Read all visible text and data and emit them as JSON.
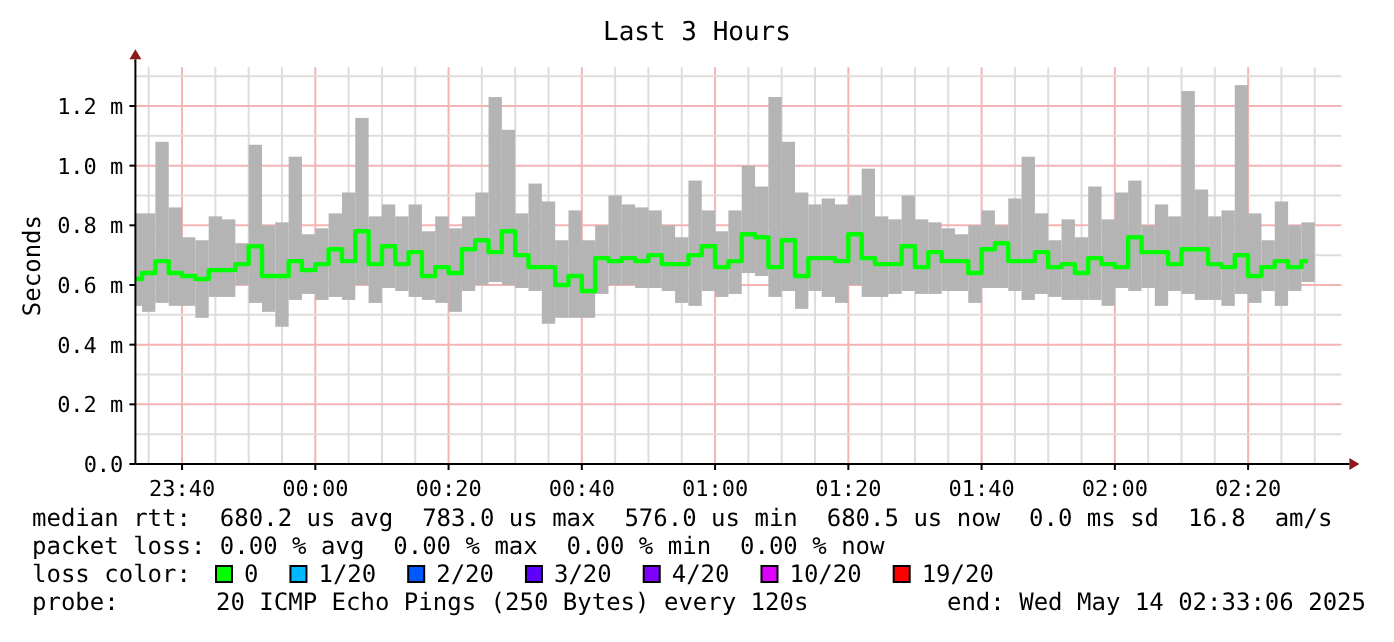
{
  "chart_data": {
    "type": "bar",
    "title": "Last 3 Hours",
    "ylabel": "Seconds",
    "xlim": [
      "2025-05-13T23:33",
      "2025-05-14T02:34"
    ],
    "xticks": [
      {
        "value": "2025-05-13T23:35",
        "label": null
      },
      {
        "value": "2025-05-13T23:40",
        "label": "23:40"
      },
      {
        "value": "2025-05-13T23:45",
        "label": null
      },
      {
        "value": "2025-05-13T23:50",
        "label": null
      },
      {
        "value": "2025-05-13T23:55",
        "label": null
      },
      {
        "value": "2025-05-14T00:00",
        "label": "00:00"
      },
      {
        "value": "2025-05-14T00:05",
        "label": null
      },
      {
        "value": "2025-05-14T00:10",
        "label": null
      },
      {
        "value": "2025-05-14T00:15",
        "label": null
      },
      {
        "value": "2025-05-14T00:20",
        "label": "00:20"
      },
      {
        "value": "2025-05-14T00:25",
        "label": null
      },
      {
        "value": "2025-05-14T00:30",
        "label": null
      },
      {
        "value": "2025-05-14T00:35",
        "label": null
      },
      {
        "value": "2025-05-14T00:40",
        "label": "00:40"
      },
      {
        "value": "2025-05-14T00:45",
        "label": null
      },
      {
        "value": "2025-05-14T00:50",
        "label": null
      },
      {
        "value": "2025-05-14T00:55",
        "label": null
      },
      {
        "value": "2025-05-14T01:00",
        "label": "01:00"
      },
      {
        "value": "2025-05-14T01:05",
        "label": null
      },
      {
        "value": "2025-05-14T01:10",
        "label": null
      },
      {
        "value": "2025-05-14T01:15",
        "label": null
      },
      {
        "value": "2025-05-14T01:20",
        "label": "01:20"
      },
      {
        "value": "2025-05-14T01:25",
        "label": null
      },
      {
        "value": "2025-05-14T01:30",
        "label": null
      },
      {
        "value": "2025-05-14T01:35",
        "label": null
      },
      {
        "value": "2025-05-14T01:40",
        "label": "01:40"
      },
      {
        "value": "2025-05-14T01:45",
        "label": null
      },
      {
        "value": "2025-05-14T01:50",
        "label": null
      },
      {
        "value": "2025-05-14T01:55",
        "label": null
      },
      {
        "value": "2025-05-14T02:00",
        "label": "02:00"
      },
      {
        "value": "2025-05-14T02:05",
        "label": null
      },
      {
        "value": "2025-05-14T02:10",
        "label": null
      },
      {
        "value": "2025-05-14T02:15",
        "label": null
      },
      {
        "value": "2025-05-14T02:20",
        "label": "02:20"
      },
      {
        "value": "2025-05-14T02:25",
        "label": null
      },
      {
        "value": "2025-05-14T02:30",
        "label": null
      }
    ],
    "ylim": [
      0,
      1.33
    ],
    "yticks": [
      {
        "value": 0,
        "label": "0.0"
      },
      {
        "value": 0.1,
        "label": null
      },
      {
        "value": 0.2,
        "label": "0.2 m"
      },
      {
        "value": 0.3,
        "label": null
      },
      {
        "value": 0.4,
        "label": "0.4 m"
      },
      {
        "value": 0.5,
        "label": null
      },
      {
        "value": 0.6,
        "label": "0.6 m"
      },
      {
        "value": 0.7,
        "label": null
      },
      {
        "value": 0.8,
        "label": "0.8 m"
      },
      {
        "value": 0.9,
        "label": null
      },
      {
        "value": 1.0,
        "label": "1.0 m"
      },
      {
        "value": 1.1,
        "label": null
      },
      {
        "value": 1.2,
        "label": "1.2 m"
      },
      {
        "value": 1.3,
        "label": null
      }
    ],
    "grid": true,
    "series": [
      {
        "color": "#b4b4b4",
        "x": [
          "2025-05-13T23:33",
          "2025-05-13T23:35",
          "2025-05-13T23:37",
          "2025-05-13T23:39",
          "2025-05-13T23:41",
          "2025-05-13T23:43",
          "2025-05-13T23:45",
          "2025-05-13T23:47",
          "2025-05-13T23:49",
          "2025-05-13T23:51",
          "2025-05-13T23:53",
          "2025-05-13T23:55",
          "2025-05-13T23:57",
          "2025-05-13T23:59",
          "2025-05-14T00:01",
          "2025-05-14T00:03",
          "2025-05-14T00:05",
          "2025-05-14T00:07",
          "2025-05-14T00:09",
          "2025-05-14T00:11",
          "2025-05-14T00:13",
          "2025-05-14T00:15",
          "2025-05-14T00:17",
          "2025-05-14T00:19",
          "2025-05-14T00:21",
          "2025-05-14T00:23",
          "2025-05-14T00:25",
          "2025-05-14T00:27",
          "2025-05-14T00:29",
          "2025-05-14T00:31",
          "2025-05-14T00:33",
          "2025-05-14T00:35",
          "2025-05-14T00:37",
          "2025-05-14T00:39",
          "2025-05-14T00:41",
          "2025-05-14T00:43",
          "2025-05-14T00:45",
          "2025-05-14T00:47",
          "2025-05-14T00:49",
          "2025-05-14T00:51",
          "2025-05-14T00:53",
          "2025-05-14T00:55",
          "2025-05-14T00:57",
          "2025-05-14T00:59",
          "2025-05-14T01:01",
          "2025-05-14T01:03",
          "2025-05-14T01:05",
          "2025-05-14T01:07",
          "2025-05-14T01:09",
          "2025-05-14T01:11",
          "2025-05-14T01:13",
          "2025-05-14T01:15",
          "2025-05-14T01:17",
          "2025-05-14T01:19",
          "2025-05-14T01:21",
          "2025-05-14T01:23",
          "2025-05-14T01:25",
          "2025-05-14T01:27",
          "2025-05-14T01:29",
          "2025-05-14T01:31",
          "2025-05-14T01:33",
          "2025-05-14T01:35",
          "2025-05-14T01:37",
          "2025-05-14T01:39",
          "2025-05-14T01:41",
          "2025-05-14T01:43",
          "2025-05-14T01:45",
          "2025-05-14T01:47",
          "2025-05-14T01:49",
          "2025-05-14T01:51",
          "2025-05-14T01:53",
          "2025-05-14T01:55",
          "2025-05-14T01:57",
          "2025-05-14T01:59",
          "2025-05-14T02:01",
          "2025-05-14T02:03",
          "2025-05-14T02:05",
          "2025-05-14T02:07",
          "2025-05-14T02:09",
          "2025-05-14T02:11",
          "2025-05-14T02:13",
          "2025-05-14T02:15",
          "2025-05-14T02:17",
          "2025-05-14T02:19",
          "2025-05-14T02:21",
          "2025-05-14T02:23",
          "2025-05-14T02:25",
          "2025-05-14T02:27",
          "2025-05-14T02:29"
        ],
        "base": [
          0.53,
          0.51,
          0.54,
          0.53,
          0.53,
          0.49,
          0.56,
          0.56,
          0.6,
          0.54,
          0.51,
          0.46,
          0.55,
          0.57,
          0.55,
          0.56,
          0.55,
          0.6,
          0.54,
          0.59,
          0.58,
          0.56,
          0.55,
          0.54,
          0.51,
          0.58,
          0.6,
          0.61,
          0.6,
          0.59,
          0.58,
          0.47,
          0.49,
          0.49,
          0.49,
          0.57,
          0.6,
          0.6,
          0.59,
          0.59,
          0.58,
          0.54,
          0.53,
          0.58,
          0.56,
          0.57,
          0.64,
          0.63,
          0.56,
          0.58,
          0.52,
          0.58,
          0.56,
          0.54,
          0.6,
          0.56,
          0.56,
          0.57,
          0.58,
          0.57,
          0.57,
          0.58,
          0.58,
          0.54,
          0.59,
          0.59,
          0.58,
          0.55,
          0.57,
          0.56,
          0.55,
          0.55,
          0.55,
          0.53,
          0.59,
          0.58,
          0.59,
          0.53,
          0.58,
          0.57,
          0.55,
          0.55,
          0.53,
          0.57,
          0.54,
          0.58,
          0.53,
          0.58,
          0.61
        ],
        "values": [
          0.31,
          0.33,
          0.54,
          0.33,
          0.23,
          0.26,
          0.27,
          0.26,
          0.14,
          0.53,
          0.29,
          0.35,
          0.48,
          0.2,
          0.24,
          0.28,
          0.36,
          0.56,
          0.29,
          0.28,
          0.25,
          0.31,
          0.23,
          0.29,
          0.28,
          0.25,
          0.31,
          0.62,
          0.52,
          0.25,
          0.36,
          0.41,
          0.26,
          0.36,
          0.26,
          0.23,
          0.3,
          0.27,
          0.27,
          0.26,
          0.22,
          0.22,
          0.42,
          0.27,
          0.22,
          0.28,
          0.36,
          0.3,
          0.67,
          0.5,
          0.39,
          0.29,
          0.33,
          0.33,
          0.3,
          0.43,
          0.27,
          0.25,
          0.32,
          0.25,
          0.24,
          0.21,
          0.19,
          0.26,
          0.26,
          0.21,
          0.31,
          0.48,
          0.27,
          0.19,
          0.27,
          0.21,
          0.38,
          0.29,
          0.32,
          0.37,
          0.21,
          0.34,
          0.25,
          0.68,
          0.37,
          0.28,
          0.32,
          0.7,
          0.3,
          0.17,
          0.35,
          0.22,
          0.2
        ]
      },
      {
        "type": "step",
        "color": "#00ff00",
        "x": [
          "2025-05-13T23:33",
          "2025-05-13T23:35",
          "2025-05-13T23:37",
          "2025-05-13T23:39",
          "2025-05-13T23:41",
          "2025-05-13T23:43",
          "2025-05-13T23:45",
          "2025-05-13T23:47",
          "2025-05-13T23:49",
          "2025-05-13T23:51",
          "2025-05-13T23:53",
          "2025-05-13T23:55",
          "2025-05-13T23:57",
          "2025-05-13T23:59",
          "2025-05-14T00:01",
          "2025-05-14T00:03",
          "2025-05-14T00:05",
          "2025-05-14T00:07",
          "2025-05-14T00:09",
          "2025-05-14T00:11",
          "2025-05-14T00:13",
          "2025-05-14T00:15",
          "2025-05-14T00:17",
          "2025-05-14T00:19",
          "2025-05-14T00:21",
          "2025-05-14T00:23",
          "2025-05-14T00:25",
          "2025-05-14T00:27",
          "2025-05-14T00:29",
          "2025-05-14T00:31",
          "2025-05-14T00:33",
          "2025-05-14T00:35",
          "2025-05-14T00:37",
          "2025-05-14T00:39",
          "2025-05-14T00:41",
          "2025-05-14T00:43",
          "2025-05-14T00:45",
          "2025-05-14T00:47",
          "2025-05-14T00:49",
          "2025-05-14T00:51",
          "2025-05-14T00:53",
          "2025-05-14T00:55",
          "2025-05-14T00:57",
          "2025-05-14T00:59",
          "2025-05-14T01:01",
          "2025-05-14T01:03",
          "2025-05-14T01:05",
          "2025-05-14T01:07",
          "2025-05-14T01:09",
          "2025-05-14T01:11",
          "2025-05-14T01:13",
          "2025-05-14T01:15",
          "2025-05-14T01:17",
          "2025-05-14T01:19",
          "2025-05-14T01:21",
          "2025-05-14T01:23",
          "2025-05-14T01:25",
          "2025-05-14T01:27",
          "2025-05-14T01:29",
          "2025-05-14T01:31",
          "2025-05-14T01:33",
          "2025-05-14T01:35",
          "2025-05-14T01:37",
          "2025-05-14T01:39",
          "2025-05-14T01:41",
          "2025-05-14T01:43",
          "2025-05-14T01:45",
          "2025-05-14T01:47",
          "2025-05-14T01:49",
          "2025-05-14T01:51",
          "2025-05-14T01:53",
          "2025-05-14T01:55",
          "2025-05-14T01:57",
          "2025-05-14T01:59",
          "2025-05-14T02:01",
          "2025-05-14T02:03",
          "2025-05-14T02:05",
          "2025-05-14T02:07",
          "2025-05-14T02:09",
          "2025-05-14T02:11",
          "2025-05-14T02:13",
          "2025-05-14T02:15",
          "2025-05-14T02:17",
          "2025-05-14T02:19",
          "2025-05-14T02:21",
          "2025-05-14T02:23",
          "2025-05-14T02:25",
          "2025-05-14T02:27",
          "2025-05-14T02:29"
        ],
        "values": [
          0.62,
          0.64,
          0.68,
          0.64,
          0.63,
          0.62,
          0.65,
          0.65,
          0.67,
          0.73,
          0.63,
          0.63,
          0.68,
          0.65,
          0.67,
          0.72,
          0.68,
          0.78,
          0.67,
          0.73,
          0.67,
          0.71,
          0.63,
          0.66,
          0.64,
          0.72,
          0.75,
          0.71,
          0.78,
          0.7,
          0.66,
          0.66,
          0.6,
          0.63,
          0.58,
          0.69,
          0.68,
          0.69,
          0.68,
          0.7,
          0.67,
          0.67,
          0.7,
          0.73,
          0.66,
          0.68,
          0.77,
          0.76,
          0.66,
          0.75,
          0.63,
          0.69,
          0.69,
          0.68,
          0.77,
          0.69,
          0.67,
          0.67,
          0.73,
          0.66,
          0.71,
          0.68,
          0.68,
          0.64,
          0.72,
          0.74,
          0.68,
          0.68,
          0.71,
          0.66,
          0.67,
          0.64,
          0.69,
          0.67,
          0.66,
          0.76,
          0.71,
          0.71,
          0.67,
          0.72,
          0.72,
          0.67,
          0.66,
          0.7,
          0.63,
          0.66,
          0.68,
          0.66,
          0.68
        ]
      }
    ],
    "annotations": [
      "median rtt:  680.2 us avg  783.0 us max  576.0 us min  680.5 us now  0.0 ms sd  16.8  am/s",
      "packet loss: 0.00 % avg  0.00 % max  0.00 % min  0.00 % now",
      "loss color:",
      "0",
      "1/20",
      "2/20",
      "3/20",
      "4/20",
      "10/20",
      "19/20",
      "probe:",
      "20 ICMP Echo Pings (250 Bytes) every 120s",
      "end: Wed May 14 02:33:06 2025"
    ]
  }
}
